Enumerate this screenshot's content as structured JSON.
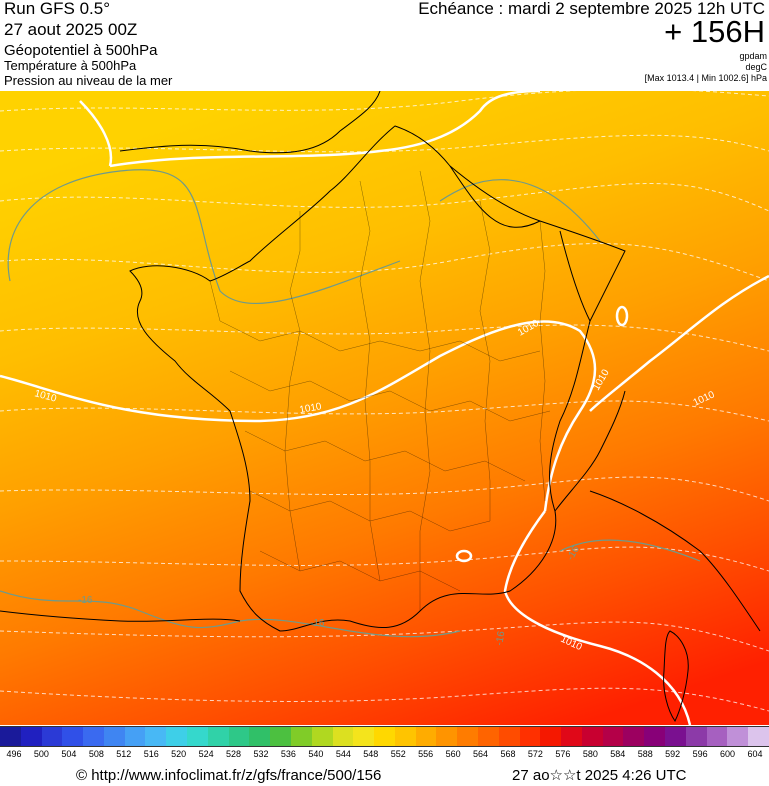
{
  "header": {
    "run_title": "Run GFS 0.5°",
    "run_date": "27 aout 2025 00Z",
    "param_1": "Géopotentiel à 500hPa",
    "param_2": "Température à 500hPa",
    "param_3": "Pression au niveau de la mer",
    "valid_time": "Echéance : mardi 2 septembre 2025 12h UTC",
    "lead_time": "+ 156H",
    "unit_1": "gpdam",
    "unit_2": "degC",
    "pressure_range": "[Max 1013.4 | Min 1002.6] hPa"
  },
  "map": {
    "region": "France",
    "isobar_labels": [
      "1010",
      "1010",
      "1010",
      "1010",
      "1010",
      "1010"
    ],
    "isotherm_labels": [
      "-16",
      "-16",
      "-16",
      "-16"
    ],
    "colors": {
      "isobar": "#ffffff",
      "isotherm": "#6f9a8a",
      "borders": "#000000",
      "field_north": "#ffd000",
      "field_south": "#ff2000"
    }
  },
  "colorbar": {
    "labels": [
      "496",
      "500",
      "504",
      "508",
      "512",
      "516",
      "520",
      "524",
      "528",
      "532",
      "536",
      "540",
      "544",
      "548",
      "552",
      "556",
      "560",
      "564",
      "568",
      "572",
      "576",
      "580",
      "584",
      "588",
      "592",
      "596",
      "600",
      "604"
    ],
    "colors": [
      "#1a1a9a",
      "#2020c0",
      "#2b3ad6",
      "#3050e8",
      "#3a6af0",
      "#3f85f2",
      "#45a0f5",
      "#48b8f5",
      "#3ecfe8",
      "#35d8cc",
      "#30d2a8",
      "#2ec888",
      "#30c068",
      "#4cc040",
      "#80cc28",
      "#b0d820",
      "#dce020",
      "#f4e41c",
      "#ffd800",
      "#ffc400",
      "#ffac00",
      "#ff9400",
      "#ff7c00",
      "#ff6400",
      "#ff4c00",
      "#ff3000",
      "#f51800",
      "#e00818",
      "#c80030",
      "#b40048",
      "#9c0060",
      "#880078",
      "#7a1090",
      "#8c3aa8",
      "#a660c0",
      "#c090d8",
      "#dcc4ec"
    ]
  },
  "footer": {
    "url": "© http://www.infoclimat.fr/z/gfs/france/500/156",
    "timestamp": "27 ao☆☆t 2025  4:26 UTC"
  }
}
